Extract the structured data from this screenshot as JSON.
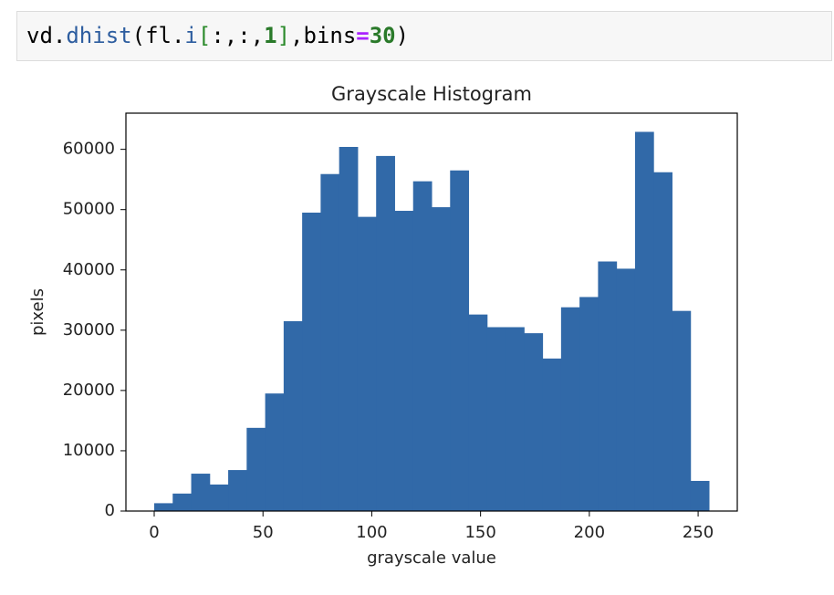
{
  "code_cell": {
    "tokens": [
      "vd",
      ".",
      "dhist",
      "(",
      "fl",
      ".",
      "i",
      "[",
      ":,:,",
      "1",
      "]",
      ",bins",
      "=",
      "30",
      ")"
    ]
  },
  "chart_data": {
    "type": "histogram",
    "title": "Grayscale Histogram",
    "x_label": "grayscale value",
    "y_label": "pixels",
    "bins": [
      0,
      8.5,
      17,
      25.5,
      34,
      42.5,
      51,
      59.5,
      68,
      76.5,
      85,
      93.5,
      102,
      110.5,
      119,
      127.5,
      136,
      144.5,
      153,
      161.5,
      170,
      178.5,
      187,
      195.5,
      204,
      212.5,
      221,
      229.5,
      238,
      246.5,
      255
    ],
    "values": [
      1300,
      2900,
      6200,
      4400,
      6800,
      13800,
      19500,
      31500,
      49500,
      55900,
      60400,
      48800,
      58900,
      49800,
      54700,
      50400,
      56500,
      32600,
      30500,
      30500,
      29500,
      25300,
      33800,
      35500,
      41400,
      40200,
      62900,
      56200,
      33200,
      5000
    ],
    "color": "#3169a8",
    "xlim": [
      -13,
      268
    ],
    "xticks": [
      0,
      50,
      100,
      150,
      200,
      250
    ],
    "ylim": [
      0,
      66000
    ],
    "yticks": [
      0,
      10000,
      20000,
      30000,
      40000,
      50000,
      60000
    ]
  }
}
